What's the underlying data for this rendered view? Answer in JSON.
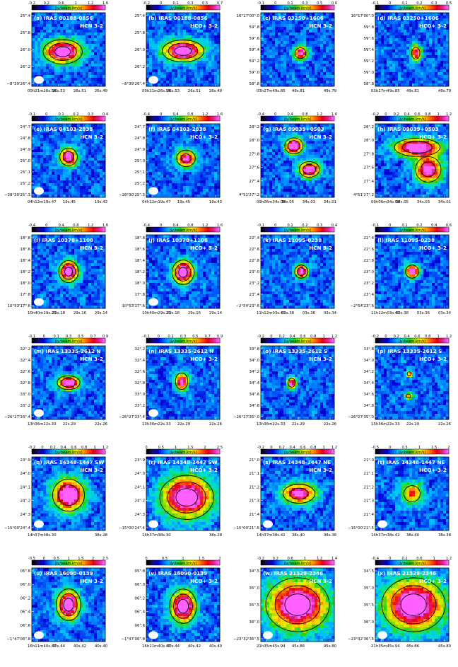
{
  "colorbar_unit": "(Jy/beam.km/s)",
  "colormap": [
    "#000000",
    "#1a0a6e",
    "#0000d8",
    "#0066ff",
    "#00c0ff",
    "#00e8b0",
    "#20d020",
    "#a0e000",
    "#f0f000",
    "#ffb000",
    "#ff5000",
    "#e80010",
    "#e0208c",
    "#ff60ff"
  ],
  "contour_color": "#000000",
  "label_color": "#ffffff",
  "beam_color": "#ffffff",
  "chart_data": [
    {
      "type": "heatmap",
      "panel": "(a)",
      "source": "IRAS 00188-0856",
      "line": "HCN 3-2",
      "cbar_ticks": [
        "-0.2",
        "0.2",
        "0.6",
        "1",
        "1.2",
        "1.6"
      ],
      "y_ticks": [
        "25\".4",
        "25\".8",
        "26\".0",
        "26\".2",
        "−8°39'26\".4"
      ],
      "x_ticks": [
        "00h21m26s.56",
        "26s.53",
        "26s.51",
        "26s.49"
      ],
      "sources": [
        {
          "x": 0.42,
          "y": 0.53,
          "peak": 1.0,
          "w": 0.16,
          "h": 0.1
        }
      ],
      "contour_levels": [
        0.25,
        0.5,
        0.8
      ],
      "beam": true
    },
    {
      "type": "heatmap",
      "panel": "(b)",
      "source": "IRAS 00188-0856",
      "line": "HCO+ 3-2",
      "cbar_ticks": [
        "-0.2",
        "0",
        "0.1",
        "0.3",
        "0.5",
        "0.7"
      ],
      "y_ticks": [
        "25\".4",
        "25\".8",
        "26\".0",
        "26\".2",
        "−8°39'26\".4"
      ],
      "x_ticks": [
        "00h21m26s.56",
        "26s.53",
        "26s.51",
        "26s.49"
      ],
      "sources": [
        {
          "x": 0.5,
          "y": 0.52,
          "peak": 1.0,
          "w": 0.17,
          "h": 0.09
        }
      ],
      "contour_levels": [
        0.25,
        0.5,
        0.8
      ],
      "beam": true
    },
    {
      "type": "heatmap",
      "panel": "(c)",
      "source": "IRAS 03250+1606",
      "line": "HCN 3-2",
      "cbar_ticks": [
        "-0.1",
        "0",
        "0.1",
        "0.3",
        "0.5",
        "0.6"
      ],
      "y_ticks": [
        "16°17'00\".0",
        "59\".8",
        "59\".6",
        "59\".4",
        "59\".2",
        "59\".0",
        "58\".8"
      ],
      "x_ticks": [
        "03h27m49s.85",
        "49s.81",
        "49s.79"
      ],
      "sources": [
        {
          "x": 0.54,
          "y": 0.55,
          "peak": 0.85,
          "w": 0.06,
          "h": 0.06
        }
      ],
      "contour_levels": [
        0.4
      ],
      "beam": false
    },
    {
      "type": "heatmap",
      "panel": "(d)",
      "source": "IRAS 03250+1606",
      "line": "HCO+ 3-2",
      "cbar_ticks": [
        "-0.1",
        "0",
        "0.1",
        "0.2",
        "0.3",
        "0.5"
      ],
      "y_ticks": [
        "16°17'00\".0",
        "59\".8",
        "59\".6",
        "59\".4",
        "59\".2",
        "59\".0",
        "58\".8"
      ],
      "x_ticks": [
        "03h27m49s.85",
        "49s.81",
        "49s.79"
      ],
      "sources": [
        {
          "x": 0.55,
          "y": 0.55,
          "peak": 0.75,
          "w": 0.05,
          "h": 0.07
        }
      ],
      "contour_levels": [
        0.4
      ],
      "beam": false
    },
    {
      "type": "heatmap",
      "panel": "(e)",
      "source": "IRAS 04103-2838",
      "line": "HCN 3-2",
      "cbar_ticks": [
        "-0.1",
        "0",
        "0.1",
        "0.2",
        "0.3",
        "0.4"
      ],
      "y_ticks": [
        "24\".7",
        "24\".8",
        "24\".9",
        "25\".0",
        "25\".1",
        "25\".2",
        "−28°30'25\".3"
      ],
      "x_ticks": [
        "04h12m19s.47",
        "19s.45",
        "19s.43"
      ],
      "sources": [
        {
          "x": 0.5,
          "y": 0.45,
          "peak": 0.9,
          "w": 0.08,
          "h": 0.08
        }
      ],
      "contour_levels": [
        0.3,
        0.6
      ],
      "beam": true
    },
    {
      "type": "heatmap",
      "panel": "(f)",
      "source": "IRAS 04103-2838",
      "line": "HCO+ 3-2",
      "cbar_ticks": [
        "-0.4",
        "0",
        "0.4",
        "0.8",
        "1.2",
        "1.6"
      ],
      "y_ticks": [
        "24\".7",
        "24\".8",
        "24\".9",
        "25\".0",
        "25\".1",
        "25\".2",
        "−28°30'25\".3"
      ],
      "x_ticks": [
        "04h12m19s.47",
        "19s.45",
        "19s.43"
      ],
      "sources": [
        {
          "x": 0.54,
          "y": 0.47,
          "peak": 0.8,
          "w": 0.09,
          "h": 0.08
        }
      ],
      "contour_levels": [
        0.3,
        0.6
      ],
      "beam": true
    },
    {
      "type": "heatmap",
      "panel": "(g)",
      "source": "IRAS 09039+0503",
      "line": "HCN 3-2",
      "cbar_ticks": [
        "-0.4",
        "0",
        "0.4",
        "0.8",
        "1.2",
        "1.6"
      ],
      "y_ticks": [
        "28\".2",
        "28\".0",
        "27\".8",
        "27\".6",
        "27\".4",
        "4°51'27\".2"
      ],
      "x_ticks": [
        "09h06m34s.08",
        "34s.05",
        "34s.03",
        "34s.01"
      ],
      "sources": [
        {
          "x": 0.45,
          "y": 0.3,
          "peak": 1.0,
          "w": 0.08,
          "h": 0.07
        },
        {
          "x": 0.66,
          "y": 0.62,
          "peak": 0.95,
          "w": 0.09,
          "h": 0.07
        }
      ],
      "contour_levels": [
        0.3,
        0.6
      ],
      "beam": false
    },
    {
      "type": "heatmap",
      "panel": "(h)",
      "source": "IRAS 09039+0503",
      "line": "HCO+ 3-2",
      "cbar_ticks": [
        "-0.2",
        "0",
        "0.2",
        "0.4",
        "0.6",
        "0.8",
        "1",
        "1.2"
      ],
      "y_ticks": [
        "28\".2",
        "28\".0",
        "27\".8",
        "27\".6",
        "27\".4",
        "4°51'27\".2"
      ],
      "x_ticks": [
        "09h06m34s.08",
        "34s.05",
        "34s.03",
        "34s.01"
      ],
      "sources": [
        {
          "x": 0.57,
          "y": 0.32,
          "peak": 1.0,
          "w": 0.2,
          "h": 0.08
        },
        {
          "x": 0.72,
          "y": 0.62,
          "peak": 0.85,
          "w": 0.12,
          "h": 0.12
        }
      ],
      "contour_levels": [
        0.3,
        0.6
      ],
      "beam": false
    },
    {
      "type": "heatmap",
      "panel": "(i)",
      "source": "IRAS 10378+1108",
      "line": "HCN 3-2",
      "cbar_ticks": [
        "-0.4",
        "0",
        "0.4",
        "0.8",
        "1.2",
        "1.6"
      ],
      "y_ticks": [
        "18\".8",
        "18\".6",
        "18\".4",
        "18\".2",
        "18\".0",
        "17\".8",
        "10°53'17\".6"
      ],
      "x_ticks": [
        "10h40m29s.21",
        "29s.18",
        "29s.16",
        "29s.14"
      ],
      "sources": [
        {
          "x": 0.5,
          "y": 0.5,
          "peak": 1.0,
          "w": 0.08,
          "h": 0.09
        }
      ],
      "contour_levels": [
        0.25,
        0.5,
        0.8
      ],
      "beam": true
    },
    {
      "type": "heatmap",
      "panel": "(j)",
      "source": "IRAS 10378+1108",
      "line": "HCO+ 3-2",
      "cbar_ticks": [
        "-0.4",
        "0",
        "0.4",
        "0.8",
        "1.2",
        "1.6"
      ],
      "y_ticks": [
        "18\".8",
        "18\".6",
        "18\".4",
        "18\".2",
        "18\".0",
        "17\".8",
        "10°53'17\".6"
      ],
      "x_ticks": [
        "10h40m29s.21",
        "29s.18",
        "29s.16",
        "29s.14"
      ],
      "sources": [
        {
          "x": 0.5,
          "y": 0.51,
          "peak": 1.0,
          "w": 0.09,
          "h": 0.1
        }
      ],
      "contour_levels": [
        0.25,
        0.5,
        0.8
      ],
      "beam": true
    },
    {
      "type": "heatmap",
      "panel": "(k)",
      "source": "IRAS 11095-0238",
      "line": "HCN 3-2",
      "cbar_ticks": [
        "-0.1",
        "0",
        "0.1",
        "0.2",
        "0.3",
        "0.4"
      ],
      "y_ticks": [
        "22\".4",
        "22\".6",
        "22\".8",
        "23\".0",
        "23\".2",
        "23\".4",
        "−2°54'23\".6"
      ],
      "x_ticks": [
        "11h12m03s.41",
        "03s.38",
        "03s.36",
        "03s.34"
      ],
      "sources": [
        {
          "x": 0.55,
          "y": 0.5,
          "peak": 0.9,
          "w": 0.06,
          "h": 0.06
        }
      ],
      "contour_levels": [
        0.3,
        0.6
      ],
      "beam": false
    },
    {
      "type": "heatmap",
      "panel": "(l)",
      "source": "IRAS 11095-0238",
      "line": "HCO+ 3-2",
      "cbar_ticks": [
        "-0.1",
        "0",
        "0.1",
        "0.2",
        "0.4",
        "0.6"
      ],
      "y_ticks": [
        "22\".4",
        "22\".6",
        "22\".8",
        "23\".0",
        "23\".2",
        "23\".4",
        "−2°54'23\".6"
      ],
      "x_ticks": [
        "11h12m03s.41",
        "03s.38",
        "03s.36",
        "03s.34"
      ],
      "sources": [
        {
          "x": 0.5,
          "y": 0.5,
          "peak": 0.9,
          "w": 0.06,
          "h": 0.06
        }
      ],
      "contour_levels": [
        0.3
      ],
      "beam": false
    },
    {
      "type": "heatmap",
      "panel": "(m)",
      "source": "IRAS 13335-2612 N",
      "line": "HCN 3-2",
      "cbar_ticks": [
        "-0.1",
        "0",
        "0.1",
        "0.3",
        "0.5",
        "0.7",
        "0.9"
      ],
      "y_ticks": [
        "32\".2",
        "32\".4",
        "32\".6",
        "32\".8",
        "33\".0",
        "33\".2",
        "−26°27'33\".4"
      ],
      "x_ticks": [
        "13h36m22s.33",
        "22s.29",
        "22s.26"
      ],
      "sources": [
        {
          "x": 0.5,
          "y": 0.5,
          "peak": 1.0,
          "w": 0.1,
          "h": 0.06
        }
      ],
      "contour_levels": [
        0.3,
        0.6
      ],
      "beam": true
    },
    {
      "type": "heatmap",
      "panel": "(n)",
      "source": "IRAS 13335-2612 N",
      "line": "HCO+ 3-2",
      "cbar_ticks": [
        "-0.1",
        "0",
        "0.1",
        "0.3",
        "0.5",
        "0.7",
        "0.9"
      ],
      "y_ticks": [
        "32\".2",
        "32\".4",
        "32\".6",
        "32\".8",
        "33\".0",
        "33\".2",
        "−26°27'33\".4"
      ],
      "x_ticks": [
        "13h36m22s.33",
        "22s.29",
        "22s.26"
      ],
      "sources": [
        {
          "x": 0.48,
          "y": 0.48,
          "peak": 0.8,
          "w": 0.06,
          "h": 0.08
        }
      ],
      "contour_levels": [
        0.3
      ],
      "beam": true
    },
    {
      "type": "heatmap",
      "panel": "(o)",
      "source": "IRAS 13335-2612 S",
      "line": "HCN 3-2",
      "cbar_ticks": [
        "-0.2",
        "0",
        "0.2",
        "0.4",
        "0.6",
        "0.8",
        "1",
        "1.2"
      ],
      "y_ticks": [
        "33\".8",
        "34\".0",
        "34\".2",
        "34\".4",
        "34\".6",
        "34\".8",
        "−26°27'35\".0"
      ],
      "x_ticks": [
        "13h36m22s.33",
        "22s.29",
        "22s.26"
      ],
      "sources": [
        {
          "x": 0.42,
          "y": 0.5,
          "peak": 0.85,
          "w": 0.04,
          "h": 0.05
        }
      ],
      "contour_levels": [
        0.4
      ],
      "beam": false
    },
    {
      "type": "heatmap",
      "panel": "(p)",
      "source": "IRAS 13335-2612 S",
      "line": "HCO+ 3-2",
      "cbar_ticks": [
        "-0.2",
        "0",
        "0.2",
        "0.4",
        "0.6",
        "0.8",
        "1",
        "1.2"
      ],
      "y_ticks": [
        "33\".8",
        "34\".0",
        "34\".2",
        "34\".4",
        "34\".6",
        "34\".8",
        "−26°27'35\".0"
      ],
      "x_ticks": [
        "13h36m22s.33",
        "22s.29",
        "22s.26"
      ],
      "sources": [
        {
          "x": 0.46,
          "y": 0.38,
          "peak": 0.6,
          "w": 0.03,
          "h": 0.03
        },
        {
          "x": 0.45,
          "y": 0.68,
          "peak": 0.55,
          "w": 0.04,
          "h": 0.03
        }
      ],
      "contour_levels": [
        0.4
      ],
      "beam": false
    },
    {
      "type": "heatmap",
      "panel": "(q)",
      "source": "IRAS 14348-1447 SW",
      "line": "HCN 3-2",
      "cbar_ticks": [
        "-0.2",
        "0",
        "0.2",
        "0.4",
        "0.6",
        "0.8",
        "1",
        "1.2"
      ],
      "y_ticks": [
        "23\".9",
        "24\".0",
        "24\".1",
        "24\".2",
        "24\".3",
        "−15°00'24\".4"
      ],
      "x_ticks": [
        "14h37m38s.30",
        "38s.28"
      ],
      "sources": [
        {
          "x": 0.5,
          "y": 0.52,
          "peak": 1.0,
          "w": 0.14,
          "h": 0.14
        }
      ],
      "contour_levels": [
        0.3,
        0.6
      ],
      "beam": true
    },
    {
      "type": "heatmap",
      "panel": "(r)",
      "source": "IRAS 14348-1447 SW",
      "line": "HCO+ 3-2",
      "cbar_ticks": [
        "0",
        "0.5",
        "1",
        "1.5",
        "2",
        "2.5"
      ],
      "y_ticks": [
        "23\".9",
        "24\".0",
        "24\".1",
        "24\".2",
        "24\".3",
        "−15°00'24\".4"
      ],
      "x_ticks": [
        "14h37m38s.30",
        "38s.28"
      ],
      "sources": [
        {
          "x": 0.55,
          "y": 0.55,
          "peak": 1.0,
          "w": 0.22,
          "h": 0.18
        }
      ],
      "contour_levels": [
        0.25,
        0.5,
        0.8
      ],
      "beam": true
    },
    {
      "type": "heatmap",
      "panel": "(s)",
      "source": "IRAS 14348-1447 NE",
      "line": "HCN 3-2",
      "cbar_ticks": [
        "-0.2",
        "0",
        "0.2",
        "0.4",
        "0.6",
        "0.8",
        "1",
        "1.2"
      ],
      "y_ticks": [
        "21\".0",
        "21\".1",
        "21\".2",
        "21\".3",
        "21\".4",
        "−15°00'21\".5"
      ],
      "x_ticks": [
        "14h37m38s.42",
        "38s.40",
        "38s.38"
      ],
      "sources": [
        {
          "x": 0.52,
          "y": 0.5,
          "peak": 0.85,
          "w": 0.15,
          "h": 0.09
        }
      ],
      "contour_levels": [
        0.3,
        0.6
      ],
      "beam": true
    },
    {
      "type": "heatmap",
      "panel": "(t)",
      "source": "IRAS 14348-1447 NE",
      "line": "HCO+ 3-2",
      "cbar_ticks": [
        "-0.5",
        "0",
        "0.5",
        "1",
        "1.5",
        "2"
      ],
      "y_ticks": [
        "21\".0",
        "21\".1",
        "21\".2",
        "21\".3",
        "21\".4",
        "−15°00'21\".5"
      ],
      "x_ticks": [
        "14h37m38s.42",
        "38s.40",
        "38s.38"
      ],
      "sources": [
        {
          "x": 0.5,
          "y": 0.5,
          "peak": 0.55,
          "w": 0.1,
          "h": 0.1
        }
      ],
      "contour_levels": [
        0.3
      ],
      "beam": true
    },
    {
      "type": "heatmap",
      "panel": "(u)",
      "source": "IRAS 16090-0139",
      "line": "HCN 3-2",
      "cbar_ticks": [
        "-0.5",
        "0",
        "0.5",
        "1",
        "1.5",
        "2",
        "2.5"
      ],
      "y_ticks": [
        "05\".8",
        "06\".0",
        "06\".2",
        "06\".4",
        "06\".6",
        "−1°47'06\".8"
      ],
      "x_ticks": [
        "16h11m40s.47",
        "40s.44",
        "40s.42",
        "40s.40"
      ],
      "sources": [
        {
          "x": 0.5,
          "y": 0.5,
          "peak": 1.0,
          "w": 0.1,
          "h": 0.13
        }
      ],
      "contour_levels": [
        0.25,
        0.5,
        0.8
      ],
      "beam": true
    },
    {
      "type": "heatmap",
      "panel": "(v)",
      "source": "IRAS 16090-0139",
      "line": "HCO+ 3-2",
      "cbar_ticks": [
        "0",
        "0.5",
        "1",
        "1.5",
        "2"
      ],
      "y_ticks": [
        "05\".8",
        "06\".0",
        "06\".2",
        "06\".4",
        "06\".6",
        "−1°47'06\".8"
      ],
      "x_ticks": [
        "16h11m40s.47",
        "40s.44",
        "40s.42",
        "40s.40"
      ],
      "sources": [
        {
          "x": 0.5,
          "y": 0.52,
          "peak": 1.0,
          "w": 0.11,
          "h": 0.14
        }
      ],
      "contour_levels": [
        0.25,
        0.5,
        0.8
      ],
      "beam": true
    },
    {
      "type": "heatmap",
      "panel": "(w)",
      "source": "IRAS 21329-2346",
      "line": "HCN 3-2",
      "cbar_ticks": [
        "-0.2",
        "0.2",
        "0.6",
        "1",
        "1.2",
        "1.4"
      ],
      "y_ticks": [
        "34\".5",
        "35\".0",
        "35\".5",
        "36\".0",
        "−23°32'36\".5"
      ],
      "x_ticks": [
        "21h35m45s.94",
        "45s.86",
        "45s.80"
      ],
      "sources": [
        {
          "x": 0.5,
          "y": 0.5,
          "peak": 1.0,
          "w": 0.26,
          "h": 0.22
        }
      ],
      "contour_levels": [
        0.25,
        0.5,
        0.8
      ],
      "beam": true
    },
    {
      "type": "heatmap",
      "panel": "(x)",
      "source": "IRAS 21329-2346",
      "line": "HCO+ 3-2",
      "cbar_ticks": [
        "-0.4",
        "0",
        "0.2",
        "0.6",
        "1",
        "1.2"
      ],
      "y_ticks": [
        "34\".5",
        "35\".0",
        "35\".5",
        "36\".0",
        "−23°32'36\".5"
      ],
      "x_ticks": [
        "21h35m45s.94",
        "45s.86",
        "45s.80"
      ],
      "sources": [
        {
          "x": 0.52,
          "y": 0.5,
          "peak": 1.0,
          "w": 0.26,
          "h": 0.22
        }
      ],
      "contour_levels": [
        0.25,
        0.5,
        0.8
      ],
      "beam": true
    }
  ]
}
